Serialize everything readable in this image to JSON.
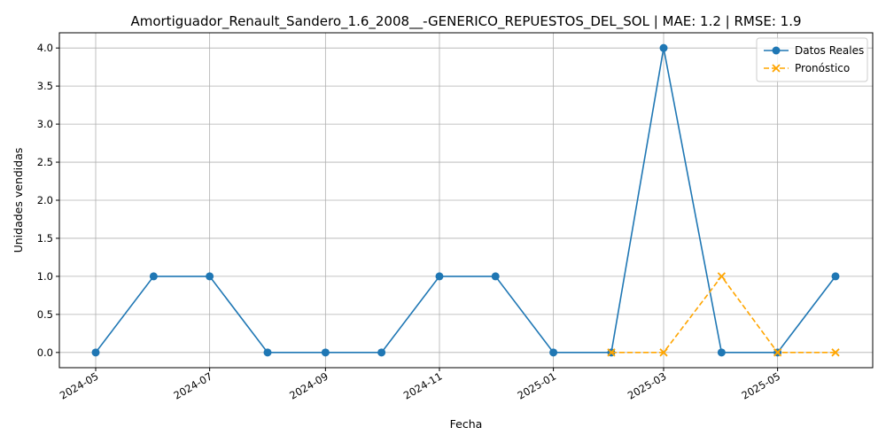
{
  "chart_data": {
    "type": "line",
    "title": "Amortiguador_Renault_Sandero_1.6_2008__-GENERICO_REPUESTOS_DEL_SOL | MAE: 1.2 | RMSE: 1.9",
    "xlabel": "Fecha",
    "ylabel": "Unidades vendidas",
    "ylim": [
      -0.2,
      4.2
    ],
    "y_ticks": [
      "0.0",
      "0.5",
      "1.0",
      "1.5",
      "2.0",
      "2.5",
      "3.0",
      "3.5",
      "4.0"
    ],
    "x_ticks": [
      "2024-05",
      "2024-07",
      "2024-09",
      "2024-11",
      "2025-01",
      "2025-03",
      "2025-05"
    ],
    "grid": true,
    "legend_position": "top-right",
    "series": [
      {
        "name": "Datos Reales",
        "style": "solid",
        "marker": "circle",
        "color": "#1f77b4",
        "x": [
          "2024-05-01",
          "2024-06-01",
          "2024-07-01",
          "2024-08-01",
          "2024-09-01",
          "2024-10-01",
          "2024-11-01",
          "2024-12-01",
          "2025-01-01",
          "2025-02-01",
          "2025-03-01",
          "2025-04-01",
          "2025-05-01",
          "2025-06-01"
        ],
        "values": [
          0,
          1,
          1,
          0,
          0,
          0,
          1,
          1,
          0,
          0,
          4,
          0,
          0,
          1
        ]
      },
      {
        "name": "Pronóstico",
        "style": "dashed",
        "marker": "x",
        "color": "#ffa500",
        "x": [
          "2025-02-01",
          "2025-03-01",
          "2025-04-01",
          "2025-05-01",
          "2025-06-01"
        ],
        "values": [
          0,
          0,
          1,
          0,
          0
        ]
      }
    ]
  }
}
